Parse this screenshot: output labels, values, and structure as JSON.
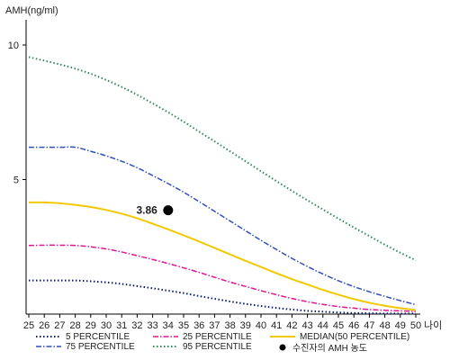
{
  "chart_data": {
    "type": "line",
    "title": "",
    "ylabel": "AMH(ng/ml)",
    "xlabel": "나이",
    "x": [
      25,
      26,
      27,
      28,
      29,
      30,
      31,
      32,
      33,
      34,
      35,
      36,
      37,
      38,
      39,
      40,
      41,
      42,
      43,
      44,
      45,
      46,
      47,
      48,
      49,
      50
    ],
    "xlim": [
      25,
      50
    ],
    "ylim": [
      0,
      10.5
    ],
    "yticks": [
      5,
      10
    ],
    "grid": false,
    "legend_position": "bottom",
    "series": [
      {
        "name": "5 PERCENTILE",
        "color": "#0a1a6b",
        "dash": "1.5,2.5",
        "width": 2,
        "values": [
          1.25,
          1.25,
          1.25,
          1.25,
          1.22,
          1.18,
          1.12,
          1.04,
          0.96,
          0.87,
          0.78,
          0.67,
          0.57,
          0.47,
          0.38,
          0.3,
          0.23,
          0.17,
          0.12,
          0.09,
          0.06,
          0.04,
          0.03,
          0.02,
          0.02,
          0.02
        ]
      },
      {
        "name": "25 PERCENTILE",
        "color": "#e01590",
        "dash": "6,2,1.5,2",
        "width": 1.5,
        "values": [
          2.55,
          2.56,
          2.56,
          2.55,
          2.5,
          2.42,
          2.31,
          2.17,
          2.03,
          1.88,
          1.72,
          1.55,
          1.37,
          1.19,
          1.03,
          0.87,
          0.72,
          0.58,
          0.46,
          0.36,
          0.28,
          0.22,
          0.17,
          0.14,
          0.12,
          0.1
        ]
      },
      {
        "name": "MEDIAN(50 PERCENTILE)",
        "color": "#f2c800",
        "dash": "",
        "width": 2,
        "values": [
          4.15,
          4.15,
          4.12,
          4.06,
          3.98,
          3.87,
          3.73,
          3.56,
          3.36,
          3.15,
          2.93,
          2.7,
          2.46,
          2.22,
          1.98,
          1.75,
          1.52,
          1.3,
          1.1,
          0.9,
          0.72,
          0.56,
          0.42,
          0.31,
          0.22,
          0.15
        ]
      },
      {
        "name": "75 PERCENTILE",
        "color": "#2f4fbf",
        "dash": "6,2,1.5,2",
        "width": 1.5,
        "values": [
          6.2,
          6.2,
          6.2,
          6.2,
          6.05,
          5.88,
          5.68,
          5.44,
          5.15,
          4.85,
          4.53,
          4.18,
          3.82,
          3.46,
          3.1,
          2.74,
          2.4,
          2.07,
          1.77,
          1.49,
          1.24,
          1.02,
          0.83,
          0.66,
          0.5,
          0.35
        ]
      },
      {
        "name": "95 PERCENTILE",
        "color": "#2e8b57",
        "dash": "1.5,2.5",
        "width": 2,
        "values": [
          9.55,
          9.42,
          9.28,
          9.12,
          8.93,
          8.7,
          8.44,
          8.15,
          7.83,
          7.5,
          7.15,
          6.78,
          6.42,
          6.05,
          5.68,
          5.31,
          4.94,
          4.58,
          4.23,
          3.89,
          3.55,
          3.22,
          2.9,
          2.58,
          2.28,
          2.0
        ]
      }
    ],
    "marker": {
      "name": "수진자의 AMH 농도",
      "x": 34,
      "y": 3.86,
      "label": "3.86",
      "color": "#000000"
    }
  }
}
